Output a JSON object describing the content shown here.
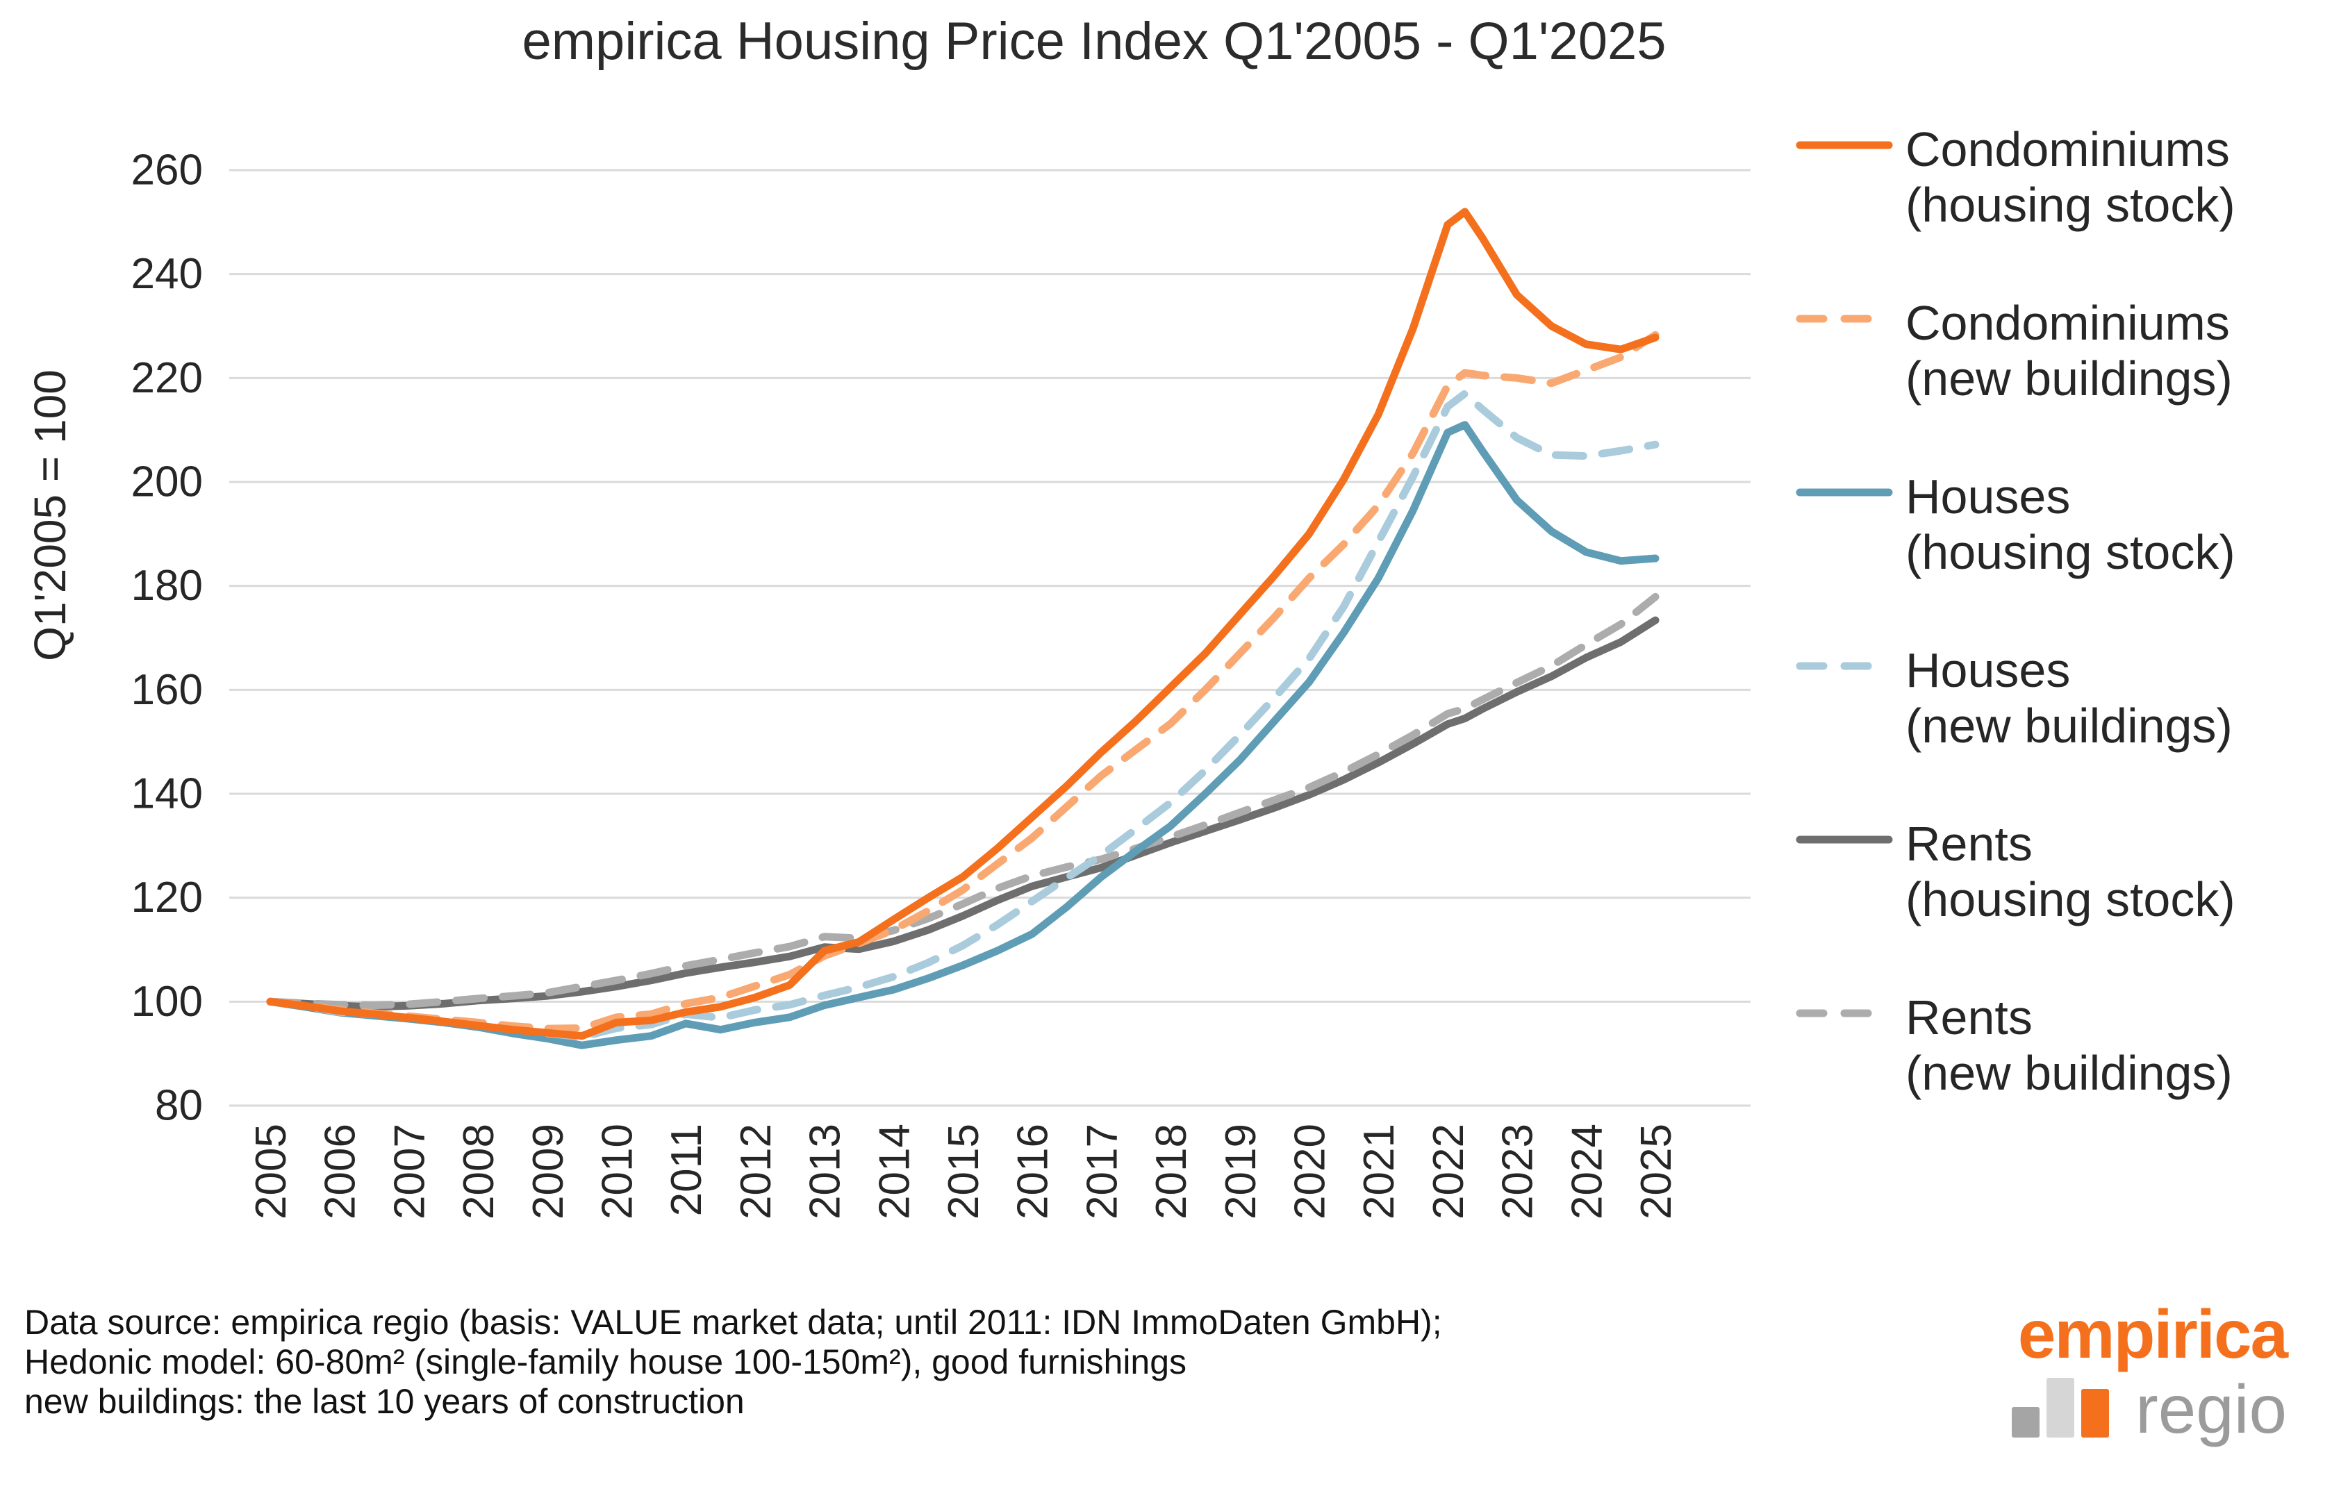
{
  "title": "empirica Housing Price Index Q1'2005 - Q1'2025",
  "chart_data": {
    "type": "line",
    "title": "empirica Housing Price Index Q1'2005 - Q1'2025",
    "xlabel": "",
    "ylabel": "Q1'2005 = 100",
    "ylim": [
      80,
      260
    ],
    "yticks": [
      80,
      100,
      120,
      140,
      160,
      180,
      200,
      220,
      240,
      260
    ],
    "xticks": [
      2005,
      2006,
      2007,
      2008,
      2009,
      2010,
      2011,
      2012,
      2013,
      2014,
      2015,
      2016,
      2017,
      2018,
      2019,
      2020,
      2021,
      2022,
      2023,
      2024,
      2025
    ],
    "grid": "horizontal",
    "legend_position": "right",
    "gridline_color": "#DADADA",
    "x": [
      2005,
      2005.5,
      2006,
      2006.5,
      2007,
      2007.5,
      2008,
      2008.5,
      2009,
      2009.5,
      2010,
      2010.5,
      2011,
      2011.5,
      2012,
      2012.5,
      2013,
      2013.5,
      2014,
      2014.5,
      2015,
      2015.5,
      2016,
      2016.5,
      2017,
      2017.5,
      2018,
      2018.5,
      2019,
      2019.5,
      2020,
      2020.5,
      2021,
      2021.5,
      2022,
      2022.25,
      2022.5,
      2023,
      2023.5,
      2024,
      2024.5,
      2025
    ],
    "series": [
      {
        "name": "Condominiums",
        "sub": "(housing stock)",
        "color": "#F4701D",
        "dash": false,
        "values": [
          100,
          99.2,
          98.2,
          97.6,
          96.9,
          96.2,
          95.4,
          94.6,
          94.0,
          93.4,
          96.0,
          96.4,
          98.0,
          99.0,
          100.8,
          103.2,
          109.8,
          111.5,
          115.8,
          120.0,
          124.0,
          129.5,
          135.5,
          141.5,
          148.0,
          154.0,
          160.5,
          167.0,
          174.5,
          182.0,
          190.0,
          200.5,
          213.0,
          229.5,
          249.5,
          252.0,
          247.0,
          236.0,
          230.0,
          226.5,
          225.5,
          227.8
        ]
      },
      {
        "name": "Condominiums",
        "sub": "(new buildings)",
        "color": "#F9A871",
        "dash": true,
        "values": [
          100,
          99.3,
          98.4,
          97.8,
          97.2,
          96.6,
          96.0,
          95.3,
          94.8,
          94.9,
          97.0,
          97.6,
          99.6,
          100.8,
          103.0,
          105.2,
          108.8,
          111.2,
          113.8,
          117.5,
          121.5,
          126.5,
          131.5,
          137.5,
          143.5,
          148.5,
          153.5,
          160.0,
          167.0,
          174.0,
          181.5,
          188.0,
          195.5,
          205.5,
          218.5,
          221.0,
          220.5,
          220.0,
          219.0,
          221.5,
          224.0,
          228.3
        ]
      },
      {
        "name": "Houses",
        "sub": "(housing stock)",
        "color": "#5E9DB5",
        "dash": false,
        "values": [
          100,
          99.0,
          97.9,
          97.3,
          96.7,
          96.0,
          95.1,
          93.9,
          92.9,
          91.6,
          92.6,
          93.4,
          95.8,
          94.6,
          96.0,
          97.0,
          99.3,
          100.8,
          102.3,
          104.5,
          107.0,
          109.8,
          113.0,
          118.2,
          124.0,
          129.0,
          133.8,
          140.0,
          146.5,
          154.0,
          161.5,
          171.0,
          181.5,
          194.5,
          209.5,
          211.0,
          206.0,
          196.5,
          190.5,
          186.5,
          184.8,
          185.3
        ]
      },
      {
        "name": "Houses",
        "sub": "(new buildings)",
        "color": "#A9CBDB",
        "dash": true,
        "values": [
          100,
          99.2,
          98.0,
          97.6,
          97.2,
          96.4,
          95.6,
          94.7,
          93.9,
          93.2,
          94.9,
          95.6,
          97.6,
          96.9,
          98.4,
          99.4,
          101.2,
          102.8,
          104.8,
          107.5,
          110.8,
          114.8,
          119.3,
          123.8,
          128.2,
          133.2,
          138.3,
          144.5,
          151.3,
          158.5,
          166.0,
          176.0,
          188.5,
          201.0,
          214.5,
          217.0,
          214.0,
          208.5,
          205.2,
          205.0,
          206.0,
          207.2
        ]
      },
      {
        "name": "Rents",
        "sub": "(housing stock)",
        "color": "#6E6E6E",
        "dash": false,
        "values": [
          100,
          99.6,
          99.2,
          99.0,
          99.2,
          99.6,
          100.2,
          100.6,
          101.1,
          101.9,
          102.9,
          104.1,
          105.5,
          106.6,
          107.6,
          108.7,
          110.5,
          110.1,
          111.6,
          113.8,
          116.5,
          119.5,
          122.2,
          124.0,
          125.8,
          128.2,
          130.6,
          132.8,
          135.0,
          137.3,
          139.8,
          142.7,
          146.0,
          149.6,
          153.4,
          154.5,
          156.3,
          159.6,
          162.6,
          166.2,
          169.2,
          173.4
        ]
      },
      {
        "name": "Rents",
        "sub": "(new buildings)",
        "color": "#ACACAC",
        "dash": true,
        "values": [
          100,
          99.7,
          99.4,
          99.3,
          99.5,
          100.0,
          100.6,
          101.1,
          101.7,
          102.9,
          104.1,
          105.4,
          106.9,
          108.1,
          109.4,
          110.6,
          112.5,
          112.2,
          113.7,
          116.0,
          118.8,
          121.8,
          124.2,
          125.9,
          127.4,
          129.5,
          131.7,
          134.0,
          136.4,
          138.8,
          141.2,
          144.2,
          147.6,
          151.3,
          155.4,
          156.4,
          158.1,
          161.4,
          164.6,
          168.7,
          172.6,
          177.9
        ]
      }
    ]
  },
  "footer": {
    "line1": "Data source: empirica regio (basis: VALUE market data; until 2011: IDN ImmoDaten GmbH);",
    "line2": "Hedonic model: 60-80m² (single-family house 100-150m²), good furnishings",
    "line3": "new buildings: the last 10 years of construction"
  },
  "branding": {
    "name": "empirica",
    "sub": "regio"
  }
}
